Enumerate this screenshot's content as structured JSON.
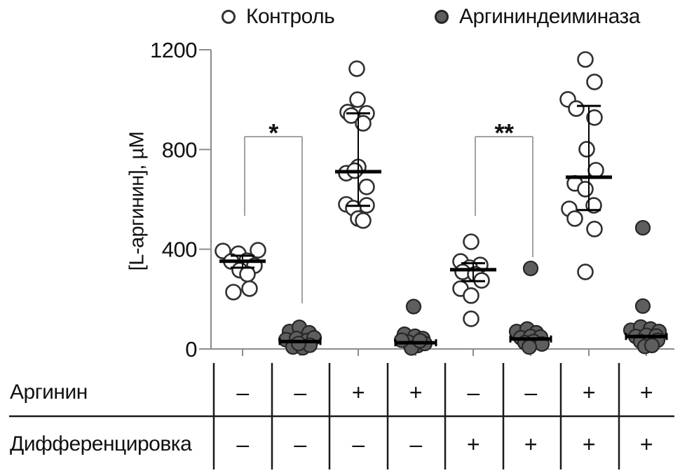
{
  "figure": {
    "ylabel": "[L-аргинин], µМ"
  },
  "legend": {
    "items": [
      {
        "label": "Контроль",
        "marker": "open-circle"
      },
      {
        "label": "Аргининдеиминаза",
        "marker": "filled-circle"
      }
    ]
  },
  "colors": {
    "open_fill": "#ffffff",
    "open_stroke": "#303030",
    "filled_fill": "#5e5e5e",
    "filled_stroke": "#262626",
    "axis": "#8c8c8c",
    "bracket": "#a2a2a2",
    "stat_line": "#000000",
    "table_line": "#1a1a1a",
    "text": "#111111"
  },
  "chart_data": {
    "type": "scatter",
    "title": "",
    "ylabel": "[L-аргинин], µМ",
    "ylim": [
      0,
      1200
    ],
    "yticks": [
      0,
      400,
      800,
      1200
    ],
    "grid": false,
    "legend_position": "top",
    "series_names": [
      "Контроль",
      "Аргининдеиминаза"
    ],
    "groups": [
      {
        "series": "Контроль",
        "arginine": "–",
        "differentiation": "–",
        "mean": 352,
        "whisker_high": 374,
        "whisker_low": 326,
        "points_uM": [
          [
            -28,
            393
          ],
          [
            22,
            396
          ],
          [
            -6,
            382
          ],
          [
            -16,
            351
          ],
          [
            6,
            354
          ],
          [
            17,
            334
          ],
          [
            -4,
            316
          ],
          [
            7,
            300
          ],
          [
            -13,
            228
          ],
          [
            10,
            242
          ]
        ]
      },
      {
        "series": "Аргининдеиминаза",
        "arginine": "–",
        "differentiation": "–",
        "mean": 30,
        "whisker_high": null,
        "whisker_low": null,
        "points_uM": [
          [
            -15,
            70
          ],
          [
            -1,
            87
          ],
          [
            13,
            65
          ],
          [
            -20,
            37
          ],
          [
            -5,
            42
          ],
          [
            10,
            34
          ],
          [
            20,
            45
          ],
          [
            -10,
            8
          ],
          [
            4,
            5
          ],
          [
            14,
            15
          ],
          [
            -2,
            22
          ]
        ]
      },
      {
        "series": "Контроль",
        "arginine": "+",
        "differentiation": "–",
        "mean": 711,
        "whisker_high": 945,
        "whisker_low": 574,
        "points_uM": [
          [
            -2,
            1124
          ],
          [
            -1,
            1000
          ],
          [
            -15,
            950
          ],
          [
            12,
            945
          ],
          [
            -10,
            936
          ],
          [
            7,
            905
          ],
          [
            0,
            730
          ],
          [
            -17,
            705
          ],
          [
            -5,
            715
          ],
          [
            12,
            650
          ],
          [
            -17,
            580
          ],
          [
            12,
            576
          ],
          [
            -7,
            565
          ],
          [
            0,
            523
          ],
          [
            7,
            515
          ]
        ]
      },
      {
        "series": "Аргининдеиминаза",
        "arginine": "+",
        "differentiation": "–",
        "mean": 25,
        "whisker_high": null,
        "whisker_low": null,
        "points_uM": [
          [
            -3,
            170
          ],
          [
            -16,
            59
          ],
          [
            -1,
            51
          ],
          [
            10,
            42
          ],
          [
            -11,
            28
          ],
          [
            3,
            14
          ],
          [
            -6,
            4
          ],
          [
            13,
            22
          ],
          [
            -20,
            35
          ],
          [
            6,
            33
          ]
        ]
      },
      {
        "series": "Контроль",
        "arginine": "–",
        "differentiation": "+",
        "mean": 318,
        "whisker_high": 344,
        "whisker_low": 272,
        "points_uM": [
          [
            -3,
            430
          ],
          [
            -18,
            351
          ],
          [
            10,
            337
          ],
          [
            -5,
            326
          ],
          [
            -15,
            309
          ],
          [
            3,
            300
          ],
          [
            12,
            275
          ],
          [
            -18,
            242
          ],
          [
            -3,
            214
          ],
          [
            -3,
            121
          ]
        ]
      },
      {
        "series": "Аргининдеиминаза",
        "arginine": "–",
        "differentiation": "+",
        "mean": 40,
        "whisker_high": null,
        "whisker_low": null,
        "points_uM": [
          [
            0,
            323
          ],
          [
            -20,
            70
          ],
          [
            -5,
            80
          ],
          [
            8,
            65
          ],
          [
            -14,
            45
          ],
          [
            0,
            50
          ],
          [
            14,
            48
          ],
          [
            -8,
            25
          ],
          [
            4,
            30
          ],
          [
            16,
            20
          ],
          [
            -2,
            8
          ]
        ]
      },
      {
        "series": "Контроль",
        "arginine": "+",
        "differentiation": "+",
        "mean": 689,
        "whisker_high": 975,
        "whisker_low": 557,
        "points_uM": [
          [
            -5,
            1161
          ],
          [
            8,
            1071
          ],
          [
            -30,
            1001
          ],
          [
            -18,
            964
          ],
          [
            8,
            928
          ],
          [
            -3,
            801
          ],
          [
            10,
            717
          ],
          [
            -20,
            664
          ],
          [
            -5,
            641
          ],
          [
            7,
            576
          ],
          [
            -28,
            562
          ],
          [
            -20,
            523
          ],
          [
            8,
            481
          ],
          [
            -5,
            309
          ]
        ]
      },
      {
        "series": "Аргининдеиминаза",
        "arginine": "+",
        "differentiation": "+",
        "mean": 50,
        "whisker_high": null,
        "whisker_low": null,
        "points_uM": [
          [
            -5,
            486
          ],
          [
            -5,
            172
          ],
          [
            -22,
            75
          ],
          [
            -8,
            88
          ],
          [
            6,
            80
          ],
          [
            18,
            70
          ],
          [
            -15,
            50
          ],
          [
            0,
            55
          ],
          [
            14,
            52
          ],
          [
            -8,
            30
          ],
          [
            4,
            25
          ],
          [
            16,
            35
          ],
          [
            -2,
            10
          ],
          [
            8,
            14
          ]
        ]
      }
    ],
    "significance": [
      {
        "label": "*",
        "group_indices": [
          0,
          1
        ]
      },
      {
        "label": "**",
        "group_indices": [
          4,
          5
        ]
      }
    ]
  },
  "table": {
    "rows": [
      {
        "label": "Аргинин",
        "values": [
          "–",
          "–",
          "+",
          "+",
          "–",
          "–",
          "+",
          "+"
        ]
      },
      {
        "label": "Дифференцировка",
        "values": [
          "–",
          "–",
          "–",
          "–",
          "+",
          "+",
          "+",
          "+"
        ]
      }
    ]
  }
}
